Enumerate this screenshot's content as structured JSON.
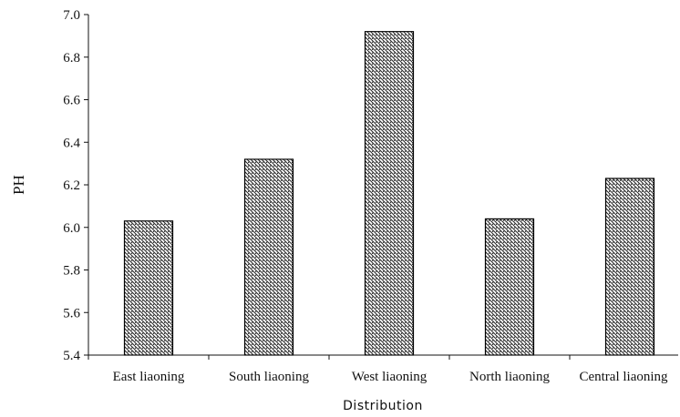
{
  "chart_data": {
    "type": "bar",
    "categories": [
      "East liaoning",
      "South liaoning",
      "West liaoning",
      "North liaoning",
      "Central liaoning"
    ],
    "values": [
      6.03,
      6.32,
      6.92,
      6.04,
      6.23
    ],
    "xlabel": "Distribution",
    "ylabel": "PH",
    "ylim": [
      5.4,
      7.0
    ],
    "yticks": [
      "5.4",
      "5.6",
      "5.8",
      "6.0",
      "6.2",
      "6.4",
      "6.6",
      "6.8",
      "7.0"
    ],
    "grid": false,
    "bar_fill": "hatched",
    "colors": {
      "axis": "#111111",
      "bar_stroke": "#000000",
      "hatch": "#222222"
    }
  }
}
